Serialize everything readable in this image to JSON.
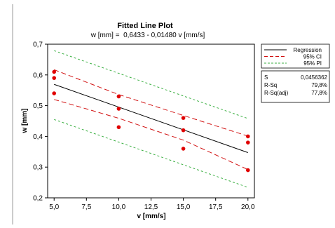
{
  "chart_data": {
    "type": "scatter",
    "title": "Fitted Line Plot",
    "subtitle": "w [mm] =  0,6433 - 0,01480 v [mm/s]",
    "xlabel": "v [mm/s]",
    "ylabel": "w [mm]",
    "xlim": [
      4.5,
      20.5
    ],
    "ylim": [
      0.2,
      0.7
    ],
    "x_ticks": [
      "5,0",
      "7,5",
      "10,0",
      "12,5",
      "15,0",
      "17,5",
      "20,0"
    ],
    "x_tick_values": [
      5,
      7.5,
      10,
      12.5,
      15,
      17.5,
      20
    ],
    "y_ticks": [
      "0,2",
      "0,3",
      "0,4",
      "0,5",
      "0,6",
      "0,7"
    ],
    "y_tick_values": [
      0.2,
      0.3,
      0.4,
      0.5,
      0.6,
      0.7
    ],
    "points": [
      {
        "x": 5,
        "y": 0.61
      },
      {
        "x": 5,
        "y": 0.59
      },
      {
        "x": 5,
        "y": 0.54
      },
      {
        "x": 10,
        "y": 0.53
      },
      {
        "x": 10,
        "y": 0.49
      },
      {
        "x": 10,
        "y": 0.43
      },
      {
        "x": 15,
        "y": 0.46
      },
      {
        "x": 15,
        "y": 0.42
      },
      {
        "x": 15,
        "y": 0.36
      },
      {
        "x": 20,
        "y": 0.4
      },
      {
        "x": 20,
        "y": 0.38
      },
      {
        "x": 20,
        "y": 0.29
      }
    ],
    "regression": {
      "intercept": 0.6433,
      "slope": -0.0148,
      "x_range": [
        5,
        20
      ]
    },
    "ci_upper": {
      "x": [
        5,
        10,
        15,
        20
      ],
      "y": [
        0.617,
        0.536,
        0.468,
        0.401
      ]
    },
    "ci_lower": {
      "x": [
        5,
        10,
        15,
        20
      ],
      "y": [
        0.52,
        0.459,
        0.388,
        0.292
      ]
    },
    "pi_upper": {
      "x": [
        5,
        20
      ],
      "y": [
        0.679,
        0.458
      ]
    },
    "pi_lower": {
      "x": [
        5,
        20
      ],
      "y": [
        0.455,
        0.234
      ]
    },
    "legend": {
      "placement": "top-right",
      "entries": [
        {
          "label": "Regression",
          "color": "#000000",
          "style": "solid"
        },
        {
          "label": "95% CI",
          "color": "#d11010",
          "style": "dashed"
        },
        {
          "label": "95% PI",
          "color": "#3cb043",
          "style": "dashed"
        }
      ]
    },
    "stats": [
      {
        "label": "S",
        "value": "0,0456362"
      },
      {
        "label": "R-Sq",
        "value": "79,8%"
      },
      {
        "label": "R-Sq(adj)",
        "value": "77,8%"
      }
    ],
    "grid": false,
    "colors": {
      "points": "#e00000",
      "regression": "#000000",
      "ci": "#d11010",
      "pi": "#3cb043"
    }
  }
}
